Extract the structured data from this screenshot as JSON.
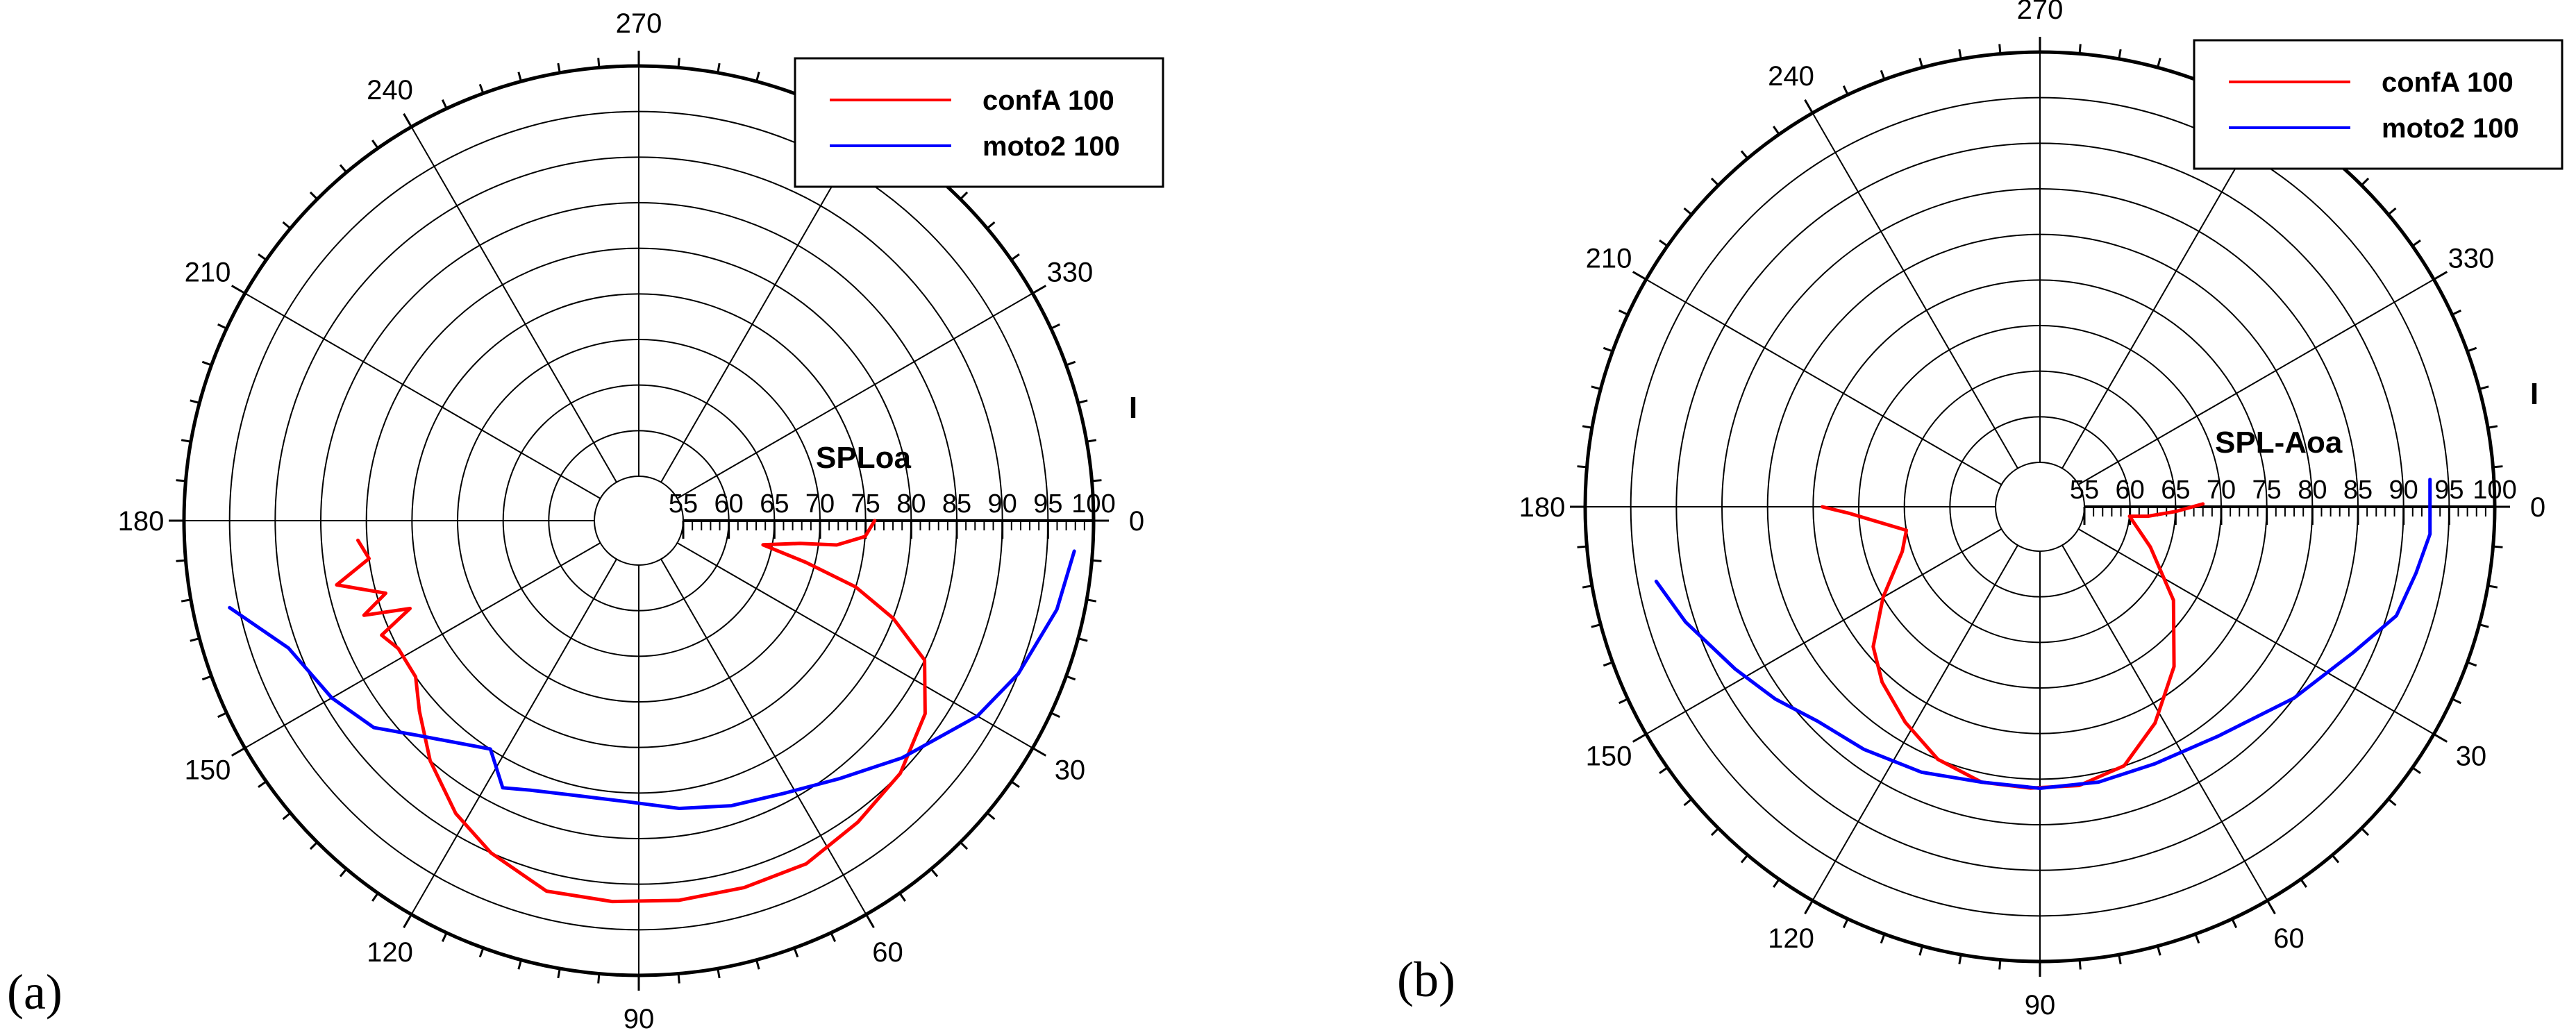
{
  "figure": {
    "subfigure_labels": [
      "(a)",
      "(b)"
    ]
  },
  "colors": {
    "confA": "#ff0000",
    "moto2": "#0000ff",
    "grid": "#000000"
  },
  "chart_data": [
    {
      "type": "polar-line",
      "label": "(a)",
      "radial_axis_title": "SPLoa",
      "angular_axis_title": "I",
      "radial_range": [
        55,
        100
      ],
      "radial_ticks": [
        "55",
        "60",
        "65",
        "70",
        "75",
        "80",
        "85",
        "90",
        "95",
        "100"
      ],
      "angle_ticks": [
        "0",
        "30",
        "60",
        "90",
        "120",
        "150",
        "180",
        "210",
        "240",
        "270",
        "330"
      ],
      "angle_direction": "clockwise from right",
      "legend": [
        "confA 100",
        "moto2 100"
      ],
      "legend_position": "top-right",
      "series": [
        {
          "name": "confA 100",
          "color": "#ff0000",
          "points": [
            [
              76,
              0
            ],
            [
              75,
              4
            ],
            [
              72,
              7
            ],
            [
              68,
              8
            ],
            [
              64,
              11
            ],
            [
              69,
              14
            ],
            [
              75,
              17
            ],
            [
              80,
              21
            ],
            [
              85,
              26
            ],
            [
              88,
              34
            ],
            [
              90,
              44
            ],
            [
              91,
              54
            ],
            [
              92,
              64
            ],
            [
              92,
              74
            ],
            [
              92,
              84
            ],
            [
              92,
              94
            ],
            [
              92,
              104
            ],
            [
              90,
              114
            ],
            [
              88,
              122
            ],
            [
              85,
              131
            ],
            [
              82,
              139
            ],
            [
              80,
              145
            ],
            [
              80,
              152
            ],
            [
              81,
              156
            ],
            [
              77,
              159
            ],
            [
              82,
              161
            ],
            [
              79,
              164
            ],
            [
              84,
              168
            ],
            [
              80,
              172
            ],
            [
              81,
              176
            ]
          ]
        },
        {
          "name": "moto2 100",
          "color": "#0000ff",
          "points": [
            [
              98,
              4
            ],
            [
              97,
              12
            ],
            [
              95,
              22
            ],
            [
              93,
              30
            ],
            [
              89,
              42
            ],
            [
              86,
              52
            ],
            [
              84,
              62
            ],
            [
              83,
              72
            ],
            [
              82,
              82
            ],
            [
              81,
              92
            ],
            [
              81,
              102
            ],
            [
              82,
              112
            ],
            [
              83,
              117
            ],
            [
              80,
              123
            ],
            [
              84,
              136
            ],
            [
              87,
              142
            ],
            [
              89,
              150
            ],
            [
              91,
              160
            ],
            [
              96,
              168
            ]
          ]
        }
      ]
    },
    {
      "type": "polar-line",
      "label": "(b)",
      "radial_axis_title": "SPL-Aoa",
      "angular_axis_title": "I",
      "radial_range": [
        55,
        100
      ],
      "radial_ticks": [
        "55",
        "60",
        "65",
        "70",
        "75",
        "80",
        "85",
        "90",
        "95",
        "100"
      ],
      "angle_ticks": [
        "0",
        "30",
        "60",
        "90",
        "120",
        "150",
        "180",
        "210",
        "240",
        "270",
        "330"
      ],
      "angle_direction": "clockwise from right",
      "legend": [
        "confA 100",
        "moto2 100"
      ],
      "legend_position": "top-right",
      "series": [
        {
          "name": "confA 100",
          "color": "#ff0000",
          "points": [
            [
              68,
              359
            ],
            [
              65,
              2
            ],
            [
              62,
              5
            ],
            [
              60,
              6
            ],
            [
              63,
              20
            ],
            [
              68,
              35
            ],
            [
              73,
              50
            ],
            [
              77,
              62
            ],
            [
              80,
              72
            ],
            [
              81,
              82
            ],
            [
              81,
              92
            ],
            [
              81,
              102
            ],
            [
              80,
              112
            ],
            [
              78,
              122
            ],
            [
              76,
              132
            ],
            [
              74,
              140
            ],
            [
              70,
              150
            ],
            [
              66,
              162
            ],
            [
              65,
              170
            ],
            [
              71,
              178
            ],
            [
              74,
              180
            ]
          ]
        },
        {
          "name": "moto2 100",
          "color": "#0000ff",
          "points": [
            [
              93,
              356
            ],
            [
              93,
              4
            ],
            [
              92,
              10
            ],
            [
              91,
              17
            ],
            [
              88,
              25
            ],
            [
              85,
              37
            ],
            [
              82,
              52
            ],
            [
              81,
              66
            ],
            [
              81,
              78
            ],
            [
              81,
              90
            ],
            [
              81,
              102
            ],
            [
              82,
              114
            ],
            [
              83,
              126
            ],
            [
              84,
              136
            ],
            [
              86,
              144
            ],
            [
              88,
              152
            ],
            [
              91,
              162
            ],
            [
              93,
              169
            ]
          ]
        }
      ]
    }
  ]
}
